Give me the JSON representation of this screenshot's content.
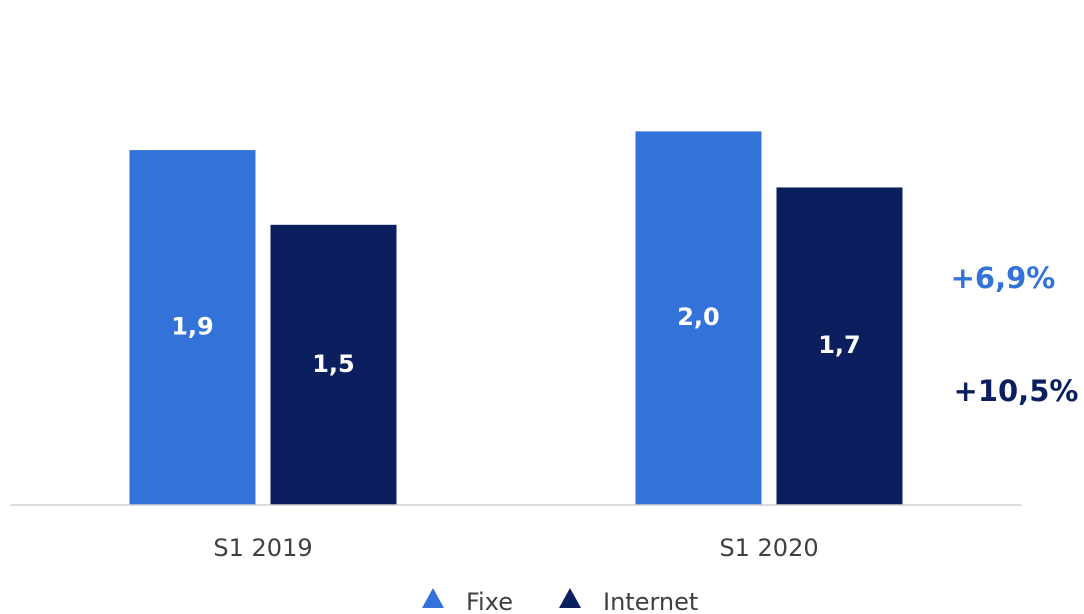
{
  "chart_data": {
    "type": "bar",
    "categories": [
      "S1 2019",
      "S1 2020"
    ],
    "series": [
      {
        "name": "Fixe",
        "color": "#3373d9",
        "values": [
          1.9,
          2.0
        ],
        "value_labels": [
          "1,9",
          "2,0"
        ]
      },
      {
        "name": "Internet",
        "color": "#0b1f5e",
        "values": [
          1.5,
          1.7
        ],
        "value_labels": [
          "1,5",
          "1,7"
        ]
      }
    ],
    "ylim": [
      0,
      2.5
    ],
    "annotations": [
      {
        "text": "+6,9%",
        "color": "#3373d9"
      },
      {
        "text": "+10,5%",
        "color": "#0b1f5e"
      }
    ],
    "legend": "bottom"
  }
}
